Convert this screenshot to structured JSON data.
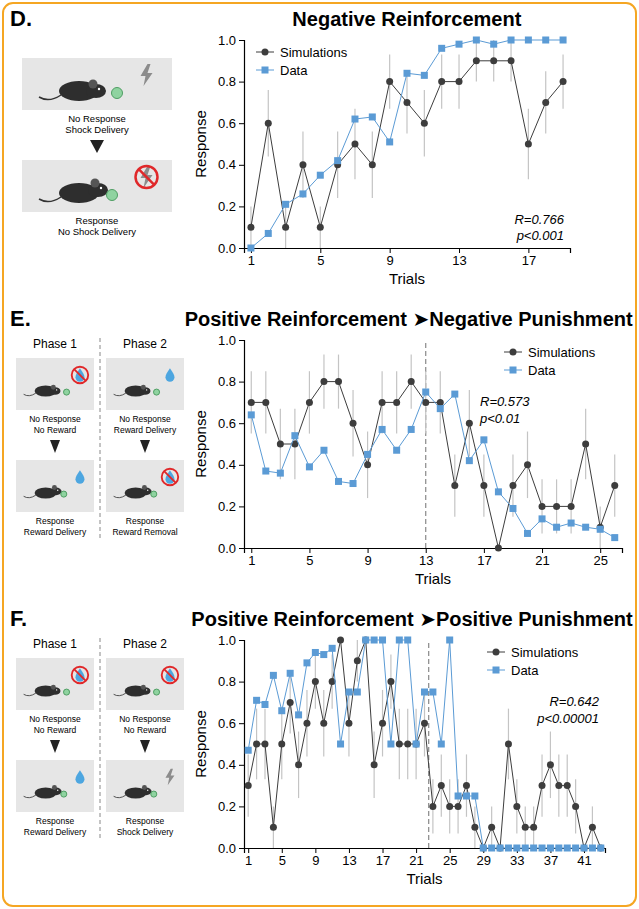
{
  "chart_data": [
    {
      "type": "line",
      "panel_label": "D.",
      "title": "Negative Reinforcement",
      "x_label": "Trials",
      "y_label": "Response",
      "schematic": [
        {
          "steps": [
            [
              "No Response",
              "Shock Delivery"
            ],
            [
              "Response",
              "No Shock Delivery"
            ]
          ]
        }
      ],
      "x": [
        1,
        2,
        3,
        4,
        5,
        6,
        7,
        8,
        9,
        10,
        11,
        12,
        13,
        14,
        15,
        16,
        17,
        18,
        19
      ],
      "series": [
        {
          "name": "Simulations",
          "color": "#3d3d3d",
          "marker": "circle",
          "line_style": "solid",
          "values": [
            0.1,
            0.6,
            0.1,
            0.4,
            0.1,
            0.4,
            0.5,
            0.4,
            0.8,
            0.7,
            0.6,
            0.8,
            0.8,
            0.9,
            0.9,
            0.9,
            0.5,
            0.7,
            0.8
          ],
          "errors": [
            0.1,
            0.16,
            0.1,
            0.16,
            0.1,
            0.16,
            0.17,
            0.16,
            0.13,
            0.15,
            0.16,
            0.13,
            0.13,
            0.1,
            0.1,
            0.1,
            0.17,
            0.15,
            0.13
          ]
        },
        {
          "name": "Data",
          "color": "#5b9bd5",
          "marker": "square",
          "line_style": "solid",
          "values": [
            0.0,
            0.07,
            0.21,
            0.26,
            0.35,
            0.42,
            0.62,
            0.63,
            0.51,
            0.84,
            0.83,
            0.96,
            0.98,
            1.0,
            0.98,
            1.0,
            1.0,
            1.0,
            1.0
          ]
        }
      ],
      "xlim": [
        0.6,
        19.4
      ],
      "xticks": [
        1,
        5,
        9,
        13,
        17
      ],
      "ylim": [
        0,
        1
      ],
      "yticks": [
        {
          "value": 0,
          "label": "0.0"
        },
        0.2,
        0.4,
        0.6,
        0.8,
        {
          "value": 1,
          "label": "1.0"
        }
      ],
      "annotations": [
        "R=0.766",
        "p<0.001"
      ],
      "legend": "upper left",
      "grid": false
    },
    {
      "type": "line",
      "panel_label": "E.",
      "title": "Positive Reinforcement ➤Negative Punishment",
      "x_label": "Trials",
      "y_label": "Response",
      "schematic": [
        {
          "label": "Phase 1",
          "steps": [
            [
              "No Response",
              "No Reward"
            ],
            [
              "Response",
              "Reward Delivery"
            ]
          ]
        },
        {
          "label": "Phase 2",
          "steps": [
            [
              "No Response",
              "Reward Delivery"
            ],
            [
              "Response",
              "Reward Removal"
            ]
          ]
        }
      ],
      "x": [
        1,
        2,
        3,
        4,
        5,
        6,
        7,
        8,
        9,
        10,
        11,
        12,
        13,
        14,
        15,
        16,
        17,
        18,
        19,
        20,
        21,
        22,
        23,
        24,
        25,
        26
      ],
      "series": [
        {
          "name": "Simulations",
          "color": "#3d3d3d",
          "marker": "circle",
          "line_style": "solid",
          "values": [
            0.7,
            0.7,
            0.5,
            0.5,
            0.7,
            0.8,
            0.8,
            0.6,
            0.4,
            0.7,
            0.7,
            0.8,
            0.7,
            0.7,
            0.3,
            0.6,
            0.3,
            0.0,
            0.3,
            0.4,
            0.2,
            0.2,
            0.2,
            0.5,
            0.1,
            0.3
          ],
          "errors": [
            0.15,
            0.15,
            0.17,
            0.17,
            0.15,
            0.13,
            0.13,
            0.16,
            0.16,
            0.15,
            0.15,
            0.13,
            0.15,
            0.15,
            0.15,
            0.16,
            0.15,
            0.0,
            0.15,
            0.16,
            0.13,
            0.13,
            0.13,
            0.17,
            0.1,
            0.15
          ]
        },
        {
          "name": "Data",
          "color": "#5b9bd5",
          "marker": "square",
          "line_style": "solid",
          "values": [
            0.64,
            0.37,
            0.36,
            0.54,
            0.39,
            0.47,
            0.32,
            0.31,
            0.45,
            0.57,
            0.47,
            0.57,
            0.75,
            0.67,
            0.74,
            0.42,
            0.52,
            0.27,
            0.19,
            0.07,
            0.14,
            0.1,
            0.12,
            0.1,
            0.09,
            0.05
          ]
        }
      ],
      "phase_change": 13,
      "xlim": [
        0.5,
        26.5
      ],
      "xticks": [
        1,
        5,
        9,
        13,
        17,
        21,
        25
      ],
      "ylim": [
        0,
        1
      ],
      "yticks": [
        {
          "value": 0,
          "label": "0.0"
        },
        0.2,
        0.4,
        0.6,
        0.8,
        {
          "value": 1,
          "label": "1.0"
        }
      ],
      "annotations": [
        "R=0.573",
        "p<0.01"
      ],
      "legend": "upper right",
      "grid": false
    },
    {
      "type": "line",
      "panel_label": "F.",
      "title": "Positive Reinforcement ➤Positive Punishment",
      "x_label": "Trials",
      "y_label": "Response",
      "schematic": [
        {
          "label": "Phase 1",
          "steps": [
            [
              "No Response",
              "No Reward"
            ],
            [
              "Response",
              "Reward Delivery"
            ]
          ]
        },
        {
          "label": "Phase 2",
          "steps": [
            [
              "No Response",
              "No Reward"
            ],
            [
              "Response",
              "Shock Delivery"
            ]
          ]
        }
      ],
      "x": [
        1,
        2,
        3,
        4,
        5,
        6,
        7,
        8,
        9,
        10,
        11,
        12,
        13,
        14,
        15,
        16,
        17,
        18,
        19,
        20,
        21,
        22,
        23,
        24,
        25,
        26,
        27,
        28,
        29,
        30,
        31,
        32,
        33,
        34,
        35,
        36,
        37,
        38,
        39,
        40,
        41,
        42,
        43
      ],
      "series": [
        {
          "name": "Simulations",
          "color": "#3d3d3d",
          "marker": "circle",
          "line_style": "solid",
          "values": [
            0.3,
            0.5,
            0.5,
            0.1,
            0.5,
            0.7,
            0.4,
            0.6,
            0.8,
            0.6,
            0.8,
            1.0,
            0.6,
            0.9,
            1.0,
            0.4,
            0.6,
            0.8,
            0.5,
            0.5,
            0.5,
            0.6,
            0.2,
            0.3,
            0.2,
            0.2,
            0.3,
            0.1,
            0.0,
            0.1,
            0.0,
            0.5,
            0.2,
            0.1,
            0.1,
            0.3,
            0.4,
            0.3,
            0.3,
            0.2,
            0.0,
            0.1,
            0.0
          ],
          "errors": [
            0.15,
            0.17,
            0.17,
            0.1,
            0.17,
            0.15,
            0.16,
            0.16,
            0.13,
            0.16,
            0.13,
            0.0,
            0.16,
            0.1,
            0.0,
            0.16,
            0.16,
            0.13,
            0.17,
            0.17,
            0.17,
            0.16,
            0.13,
            0.15,
            0.13,
            0.13,
            0.15,
            0.1,
            0.0,
            0.1,
            0.0,
            0.17,
            0.13,
            0.1,
            0.1,
            0.15,
            0.16,
            0.15,
            0.15,
            0.13,
            0.0,
            0.1,
            0.0
          ]
        },
        {
          "name": "Data",
          "color": "#5b9bd5",
          "marker": "square",
          "line_style": "solid",
          "values": [
            0.47,
            0.71,
            0.69,
            0.83,
            0.66,
            0.84,
            0.64,
            0.89,
            0.94,
            0.93,
            0.96,
            0.5,
            0.75,
            0.75,
            1.0,
            1.0,
            1.0,
            0.5,
            1.0,
            1.0,
            0.5,
            0.75,
            0.75,
            0.5,
            1.0,
            0.25,
            0.25,
            0.25,
            0.0,
            0.0,
            0.0,
            0.0,
            0.0,
            0.0,
            0.0,
            0.0,
            0.0,
            0.0,
            0.0,
            0.0,
            0.0,
            0.0,
            0.0
          ]
        }
      ],
      "phase_change": 22.5,
      "xlim": [
        0.5,
        43.5
      ],
      "xticks": [
        1,
        5,
        9,
        13,
        17,
        21,
        25,
        29,
        33,
        37,
        41
      ],
      "ylim": [
        0,
        1
      ],
      "yticks": [
        {
          "value": 0,
          "label": "0.0"
        },
        0.2,
        0.4,
        0.6,
        0.8,
        {
          "value": 1,
          "label": "1.0"
        }
      ],
      "annotations": [
        "R=0.642",
        "p<0.00001"
      ],
      "legend": "upper right",
      "grid": false
    }
  ]
}
